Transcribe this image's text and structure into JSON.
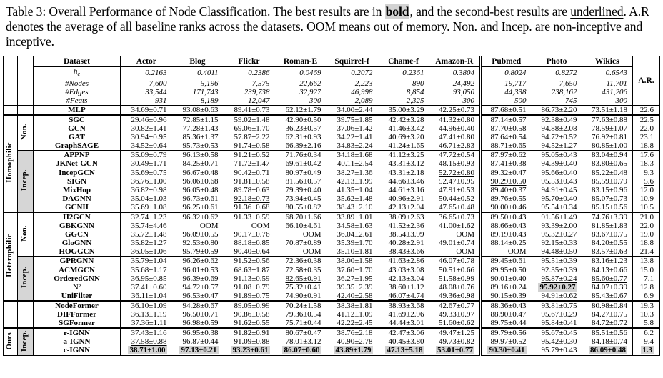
{
  "caption": {
    "segments": [
      {
        "t": "Table 3: Overall Performance of Node Classification. The best results are in "
      },
      {
        "t": "bold",
        "s": "boldhl"
      },
      {
        "t": ", and the second-best results are "
      },
      {
        "t": "underlined",
        "s": "ul"
      },
      {
        "t": ". A.R denotes the average of all baseline ranks across the datasets. OOM means out of memory. Non. and Incep. are non-inceptive and inceptive."
      }
    ]
  },
  "table": {
    "header": {
      "dataset_label": "Dataset",
      "datasets": [
        "Actor",
        "Blog",
        "Flickr",
        "Roman-E",
        "Squirrel-f",
        "Chame-f",
        "Amazon-R",
        "Pubmed",
        "Photo",
        "Wikics"
      ],
      "ar_label": "A.R."
    },
    "stats": [
      {
        "label": "h",
        "sub": "e",
        "values": [
          "0.2163",
          "0.4011",
          "0.2386",
          "0.0469",
          "0.2072",
          "0.2361",
          "0.3804",
          "0.8024",
          "0.8272",
          "0.6543"
        ]
      },
      {
        "label": "#Nodes",
        "values": [
          "7,600",
          "5,196",
          "7,575",
          "22,662",
          "2,223",
          "890",
          "24,492",
          "19,717",
          "7,650",
          "11,701"
        ]
      },
      {
        "label": "#Edges",
        "values": [
          "33,544",
          "171,743",
          "239,738",
          "32,927",
          "46,998",
          "8,854",
          "93,050",
          "44,338",
          "238,162",
          "431,206"
        ]
      },
      {
        "label": "#Feats",
        "values": [
          "931",
          "8,189",
          "12,047",
          "300",
          "2,089",
          "2,325",
          "300",
          "500",
          "745",
          "300"
        ]
      }
    ],
    "sections": [
      {
        "group": "",
        "border": "hsub",
        "subblocks": [
          {
            "sub": "",
            "gray": false,
            "rows": [
              {
                "model": "MLP",
                "cells": [
                  "34.69±0.71",
                  "93.08±0.63",
                  "89.41±0.73",
                  "62.12±1.79",
                  "34.00±2.44",
                  "35.00±3.29",
                  "42.25±0.73",
                  "87.68±0.51",
                  "86.73±2.20",
                  "73.51±1.18"
                ],
                "ar": "22.6"
              }
            ]
          }
        ]
      },
      {
        "group": "Homophilic",
        "border": "hsec",
        "subblocks": [
          {
            "sub": "Non.",
            "gray": false,
            "rows": [
              {
                "model": "SGC",
                "cells": [
                  "29.46±0.96",
                  "72.85±1.15",
                  "59.02±1.48",
                  "42.90±0.50",
                  "39.75±1.85",
                  "42.42±3.28",
                  "41.32±0.80",
                  "87.14±0.57",
                  "92.38±0.49",
                  "77.63±0.88"
                ],
                "ar": "22.5"
              },
              {
                "model": "GCN",
                "cells": [
                  "30.82±1.41",
                  "77.28±1.43",
                  "69.06±1.70",
                  "36.23±0.57",
                  "37.06±1.42",
                  "41.46±3.42",
                  "44.96±0.40",
                  "87.70±0.58",
                  "94.88±2.08",
                  "78.59±1.07"
                ],
                "ar": "22.0"
              },
              {
                "model": "GAT",
                "cells": [
                  "30.94±0.95",
                  "85.36±1.37",
                  "57.87±2.22",
                  "62.31±0.93",
                  "34.22±1.41",
                  "40.69±3.20",
                  "47.41±0.80",
                  "87.64±0.54",
                  "94.72±0.52",
                  "76.92±0.81"
                ],
                "ar": "23.1"
              },
              {
                "model": "GraphSAGE",
                "cells": [
                  "34.52±0.64",
                  "95.73±0.53",
                  "91.74±0.58",
                  "66.39±2.16",
                  "34.83±2.24",
                  "41.24±1.65",
                  "46.71±2.83",
                  "88.71±0.65",
                  "94.52±1.27",
                  "80.85±1.00"
                ],
                "ar": "18.8"
              }
            ]
          },
          {
            "sub": "Incep.",
            "gray": true,
            "rows": [
              {
                "model": "APPNP",
                "cells": [
                  "35.09±0.79",
                  "96.13±0.58",
                  "91.21±0.52",
                  "71.76±0.34",
                  "34.18±1.68",
                  "41.12±3.25",
                  "47.72±0.54",
                  "87.97±0.62",
                  "95.05±0.43",
                  "83.04±0.94"
                ],
                "ar": "17.6"
              },
              {
                "model": "JKNet-GCN",
                "cells": [
                  "30.49±1.71",
                  "84.25±0.71",
                  "71.72±1.47",
                  "69.61±0.42",
                  "40.11±2.54",
                  "43.31±3.12",
                  "48.15±0.93",
                  "87.41±0.38",
                  "94.39±0.40",
                  "83.80±0.65"
                ],
                "ar": "18.3"
              },
              {
                "model": "IncepGCN",
                "cells": [
                  "35.69±0.75",
                  "96.67±0.48",
                  "90.42±0.71",
                  "80.97±0.49",
                  "38.27±1.36",
                  "43.31±2.18",
                  "52.72±0.80",
                  "89.32±0.47",
                  "95.66±0.40",
                  "85.22±0.48"
                ],
                "ar": "9.3",
                "marks": {
                  "6": "u"
                }
              },
              {
                "model": "SIGN",
                "cells": [
                  "36.76±1.00",
                  "96.06±0.68",
                  "91.81±0.58",
                  "81.56±0.57",
                  "42.13±1.99",
                  "44.66±3.46",
                  "52.47±0.95",
                  "90.29±0.50",
                  "95.53±0.43",
                  "85.59±0.79"
                ],
                "ar": "5.6",
                "marks": {
                  "7": "u",
                  "ar": "u"
                }
              },
              {
                "model": "MixHop",
                "cells": [
                  "36.82±0.98",
                  "96.05±0.48",
                  "89.78±0.63",
                  "79.39±0.40",
                  "41.35±1.04",
                  "44.61±3.16",
                  "47.91±0.53",
                  "89.40±0.37",
                  "94.91±0.45",
                  "83.15±0.96"
                ],
                "ar": "12.0"
              },
              {
                "model": "DAGNN",
                "cells": [
                  "35.04±1.03",
                  "96.73±0.61",
                  "92.18±0.73",
                  "73.94±0.45",
                  "35.62±1.48",
                  "40.96±2.91",
                  "50.44±0.52",
                  "89.76±0.55",
                  "95.70±0.40",
                  "85.07±0.73"
                ],
                "ar": "10.9",
                "marks": {
                  "2": "u"
                }
              },
              {
                "model": "GCNII",
                "cells": [
                  "35.69±1.08",
                  "96.25±0.61",
                  "91.36±0.68",
                  "80.55±0.82",
                  "38.43±2.10",
                  "42.13±2.04",
                  "47.65±0.48",
                  "90.00±0.46",
                  "95.54±0.34",
                  "85.15±0.56"
                ],
                "ar": "10.5"
              }
            ]
          }
        ]
      },
      {
        "group": "Heterophilic",
        "border": "hsec",
        "subblocks": [
          {
            "sub": "Non.",
            "gray": false,
            "rows": [
              {
                "model": "H2GCN",
                "cells": [
                  "32.74±1.23",
                  "96.32±0.62",
                  "91.33±0.59",
                  "68.70±1.66",
                  "33.89±1.01",
                  "38.09±2.63",
                  "36.65±0.73",
                  "89.50±0.43",
                  "91.56±1.49",
                  "74.76±3.39"
                ],
                "ar": "21.0"
              },
              {
                "model": "GBKGNN",
                "cells": [
                  "35.74±4.46",
                  "OOM",
                  "OOM",
                  "66.10±4.61",
                  "34.58±1.63",
                  "41.52±2.36",
                  "41.00±1.62",
                  "88.66±0.43",
                  "93.39±2.00",
                  "81.85±1.83"
                ],
                "ar": "22.0"
              },
              {
                "model": "GGCN",
                "cells": [
                  "35.72±1.48",
                  "96.09±0.55",
                  "90.17±0.76",
                  "OOM",
                  "36.04±2.61",
                  "38.54±3.99",
                  "OOM",
                  "89.19±0.43",
                  "95.32±0.27",
                  "83.67±0.75"
                ],
                "ar": "19.0"
              },
              {
                "model": "GloGNN",
                "cells": [
                  "35.82±1.27",
                  "92.53±0.80",
                  "88.18±0.85",
                  "70.87±0.89",
                  "35.39±1.70",
                  "40.28±2.91",
                  "49.01±0.74",
                  "88.14±0.25",
                  "92.15±0.33",
                  "84.20±0.55"
                ],
                "ar": "18.8"
              },
              {
                "model": "HOGGCN",
                "cells": [
                  "36.05±1.06",
                  "95.79±0.59",
                  "90.40±0.64",
                  "OOM",
                  "35.10±1.81",
                  "38.43±3.66",
                  "OOM",
                  "OOM",
                  "94.48±0.50",
                  "83.57±0.63"
                ],
                "ar": "21.4"
              }
            ]
          },
          {
            "sub": "Incep.",
            "gray": true,
            "rows": [
              {
                "model": "GPRGNN",
                "cells": [
                  "35.79±1.04",
                  "96.26±0.62",
                  "91.52±0.56",
                  "72.36±0.38",
                  "38.00±1.58",
                  "41.63±2.86",
                  "46.07±0.78",
                  "89.45±0.61",
                  "95.51±0.39",
                  "83.16±1.23"
                ],
                "ar": "13.8"
              },
              {
                "model": "ACMGCN",
                "cells": [
                  "35.68±1.17",
                  "96.01±0.53",
                  "68.63±1.87",
                  "72.58±0.35",
                  "37.60±1.70",
                  "43.03±3.08",
                  "50.51±0.66",
                  "89.95±0.50",
                  "92.35±0.39",
                  "84.13±0.66"
                ],
                "ar": "15.0"
              },
              {
                "model": "OrderedGNN",
                "cells": [
                  "36.95±0.85",
                  "96.39±0.69",
                  "91.13±0.59",
                  "82.65±0.91",
                  "36.27±1.95",
                  "42.13±3.04",
                  "51.58±0.99",
                  "90.01±0.40",
                  "95.87±0.24",
                  "85.60±0.77"
                ],
                "ar": "7.1",
                "marks": {
                  "3": "u",
                  "8": "u",
                  "9": "u"
                }
              },
              {
                "model": "N²",
                "plain": true,
                "cells": [
                  "37.41±0.60",
                  "94.72±0.57",
                  "91.08±0.79",
                  "75.32±0.41",
                  "39.35±2.39",
                  "38.60±1.12",
                  "48.08±0.76",
                  "89.16±0.24",
                  "95.92±0.27",
                  "84.07±0.39"
                ],
                "ar": "12.8",
                "marks": {
                  "8": "b"
                }
              },
              {
                "model": "UniFilter",
                "cells": [
                  "36.11±1.04",
                  "96.53±0.47",
                  "91.89±0.75",
                  "74.90±0.91",
                  "42.40±2.58",
                  "46.07±4.74",
                  "49.36±0.98",
                  "90.15±0.39",
                  "94.91±0.62",
                  "85.43±0.67"
                ],
                "ar": "6.9",
                "marks": {
                  "4": "u",
                  "5": "u"
                }
              }
            ]
          }
        ]
      },
      {
        "group": "",
        "border": "hsec",
        "subblocks": [
          {
            "sub": "",
            "gray": false,
            "rows": [
              {
                "model": "NodeFormer",
                "cells": [
                  "36.10±1.09",
                  "94.28±0.67",
                  "89.05±0.99",
                  "70.24±1.58",
                  "38.38±1.81",
                  "38.93±3.68",
                  "42.67±0.77",
                  "88.36±0.43",
                  "93.81±0.75",
                  "80.98±0.84"
                ],
                "ar": "19.3"
              },
              {
                "model": "DIFFormer",
                "cells": [
                  "36.13±1.19",
                  "96.50±0.71",
                  "90.86±0.58",
                  "79.36±0.54",
                  "41.12±1.09",
                  "41.69±2.96",
                  "49.33±0.97",
                  "88.90±0.47",
                  "95.67±0.29",
                  "84.27±0.75"
                ],
                "ar": "10.3"
              },
              {
                "model": "SGFormer",
                "cells": [
                  "37.36±1.11",
                  "96.98±0.59",
                  "91.62±0.55",
                  "75.71±0.44",
                  "42.22±2.45",
                  "44.44±3.01",
                  "51.60±0.62",
                  "89.75±0.44",
                  "95.84±0.41",
                  "84.72±0.72"
                ],
                "ar": "5.8",
                "marks": {
                  "1": "u"
                }
              }
            ]
          }
        ]
      },
      {
        "group": "Ours",
        "border": "hsec",
        "subblocks": [
          {
            "sub": "Incep.",
            "gray": true,
            "rows": [
              {
                "model": "r-IGNN",
                "cells": [
                  "37.43±1.16",
                  "96.95±0.38",
                  "91.82±0.91",
                  "80.67±0.47",
                  "38.76±2.18",
                  "42.47±3.06",
                  "49.47±1.25",
                  "89.79±0.56",
                  "95.67±0.45",
                  "85.51±0.56"
                ],
                "ar": "6.2"
              },
              {
                "model": "a-IGNN",
                "cells": [
                  "37.58±0.88",
                  "96.87±0.44",
                  "91.09±0.88",
                  "78.01±3.12",
                  "40.90±2.78",
                  "40.45±3.80",
                  "49.73±0.82",
                  "89.97±0.52",
                  "95.42±0.30",
                  "84.18±0.74"
                ],
                "ar": "9.4",
                "marks": {
                  "0": "u"
                }
              },
              {
                "model": "c-IGNN",
                "cells": [
                  "38.71±1.00",
                  "97.13±0.21",
                  "93.23±0.61",
                  "86.07±0.60",
                  "43.89±1.79",
                  "47.13±5.18",
                  "53.01±0.77",
                  "90.30±0.41",
                  "95.79±0.43",
                  "86.09±0.48"
                ],
                "ar": "1.3",
                "marks": {
                  "0": "b",
                  "1": "b",
                  "2": "b",
                  "3": "b",
                  "4": "b",
                  "5": "b",
                  "6": "b",
                  "7": "b",
                  "9": "b",
                  "ar": "b"
                }
              }
            ]
          }
        ]
      }
    ],
    "colors": {
      "highlight": "#d3d3d3",
      "incep_bg": "#d6d6d6",
      "text": "#000000"
    }
  }
}
